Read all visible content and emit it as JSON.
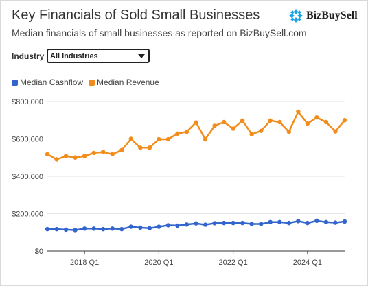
{
  "header": {
    "title": "Key Financials of Sold Small Businesses",
    "subtitle": "Median financials of small businesses as reported on BizBuySell.com"
  },
  "brand": {
    "name": "BizBuySell",
    "logo_icon": "bizbuysell-logo-icon",
    "color": "#1aa3e8"
  },
  "filter": {
    "label": "Industry",
    "selected": "All Industries",
    "caret_icon": "caret-down-icon"
  },
  "chart_data": {
    "type": "line",
    "title": "",
    "xlabel": "",
    "ylabel": "",
    "x": [
      "2017 Q1",
      "2017 Q2",
      "2017 Q3",
      "2017 Q4",
      "2018 Q1",
      "2018 Q2",
      "2018 Q3",
      "2018 Q4",
      "2019 Q1",
      "2019 Q2",
      "2019 Q3",
      "2019 Q4",
      "2020 Q1",
      "2020 Q2",
      "2020 Q3",
      "2020 Q4",
      "2021 Q1",
      "2021 Q2",
      "2021 Q3",
      "2021 Q4",
      "2022 Q1",
      "2022 Q2",
      "2022 Q3",
      "2022 Q4",
      "2023 Q1",
      "2023 Q2",
      "2023 Q3",
      "2023 Q4",
      "2024 Q1",
      "2024 Q2",
      "2024 Q3",
      "2024 Q4",
      "2025 Q1"
    ],
    "x_tick_labels": [
      "2018 Q1",
      "2020 Q1",
      "2022 Q1",
      "2024 Q1"
    ],
    "y_tick_labels": [
      "$0",
      "$200,000",
      "$400,000",
      "$600,000",
      "$800,000"
    ],
    "yticks": [
      0,
      200000,
      400000,
      600000,
      800000
    ],
    "ylim": [
      0,
      800000
    ],
    "grid": true,
    "legend_position": "top-left",
    "series": [
      {
        "name": "Median Cashflow",
        "color": "#3366cc",
        "values": [
          117000,
          117000,
          114000,
          112000,
          120000,
          120000,
          117000,
          120000,
          117000,
          130000,
          125000,
          122000,
          130000,
          138000,
          136000,
          142000,
          148000,
          141000,
          149000,
          150000,
          150000,
          150000,
          145000,
          145000,
          155000,
          155000,
          150000,
          160000,
          150000,
          162000,
          155000,
          152000,
          158000
        ]
      },
      {
        "name": "Median Revenue",
        "color": "#f28c1b",
        "values": [
          518000,
          490000,
          508000,
          500000,
          508000,
          525000,
          530000,
          518000,
          540000,
          600000,
          553000,
          553000,
          598000,
          598000,
          628000,
          638000,
          688000,
          598000,
          670000,
          690000,
          655000,
          698000,
          625000,
          643000,
          698000,
          690000,
          638000,
          745000,
          682000,
          715000,
          690000,
          640000,
          700000
        ]
      }
    ]
  }
}
